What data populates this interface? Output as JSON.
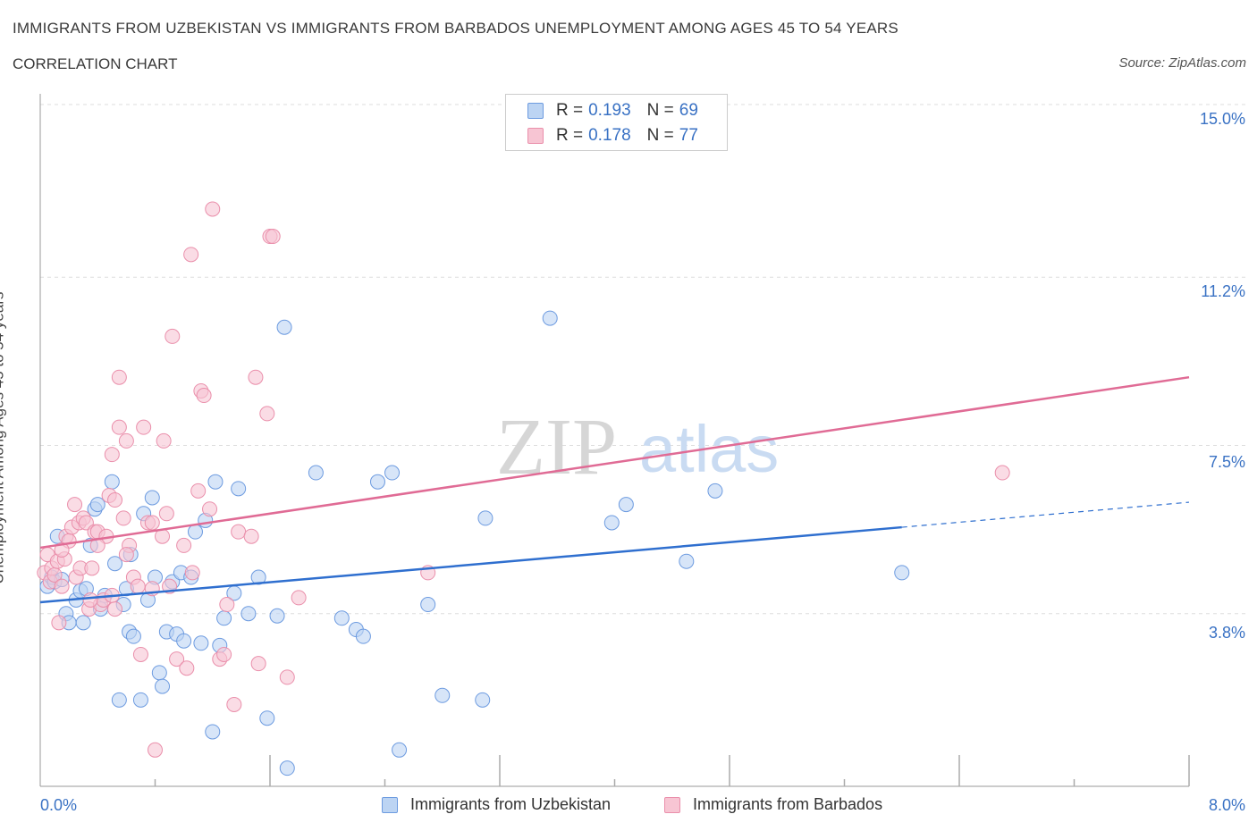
{
  "title": "IMMIGRANTS FROM UZBEKISTAN VS IMMIGRANTS FROM BARBADOS UNEMPLOYMENT AMONG AGES 45 TO 54 YEARS",
  "subtitle": "CORRELATION CHART",
  "source": "Source: ZipAtlas.com",
  "watermark": {
    "zip": "ZIP",
    "atlas": "atlas"
  },
  "legend": {
    "rows": [
      {
        "r_label": "R = ",
        "r_value": "0.193",
        "n_label": "N = ",
        "n_value": "69"
      },
      {
        "r_label": "R = ",
        "r_value": "0.178",
        "n_label": "N = ",
        "n_value": "77"
      }
    ]
  },
  "colors": {
    "uzbekistan_fill": "#bcd4f3",
    "uzbekistan_stroke": "#6d9be0",
    "uzbekistan_line": "#2f6fcf",
    "barbados_fill": "#f7c5d3",
    "barbados_stroke": "#ea8fab",
    "barbados_line": "#e06b95",
    "tick_text": "#3a72c4",
    "grid": "#dddddd"
  },
  "chart_data": {
    "type": "scatter",
    "title": "IMMIGRANTS FROM UZBEKISTAN VS IMMIGRANTS FROM BARBADOS UNEMPLOYMENT AMONG AGES 45 TO 54 YEARS",
    "ylabel": "Unemployment Among Ages 45 to 54 years",
    "xlabel": "",
    "xlim": [
      0,
      8.0
    ],
    "ylim": [
      0,
      15.0
    ],
    "x_tick_labels": [
      "0.0%",
      "8.0%"
    ],
    "y_tick_labels": [
      "15.0%",
      "11.2%",
      "7.5%",
      "3.8%"
    ],
    "y_tick_values": [
      15.0,
      11.2,
      7.5,
      3.8
    ],
    "grid": true,
    "legend_position": "bottom",
    "series": [
      {
        "name": "Immigrants from Uzbekistan",
        "R": 0.193,
        "N": 69,
        "trend": {
          "x0": 0,
          "y0": 4.05,
          "x1": 6.0,
          "y1": 5.7,
          "dashed_to_x": 8.0,
          "dashed_to_y": 6.25
        },
        "points": [
          [
            0.05,
            4.4
          ],
          [
            0.08,
            4.6
          ],
          [
            0.1,
            4.5
          ],
          [
            0.12,
            5.5
          ],
          [
            0.15,
            4.55
          ],
          [
            0.18,
            3.8
          ],
          [
            0.2,
            3.6
          ],
          [
            0.25,
            4.1
          ],
          [
            0.28,
            4.3
          ],
          [
            0.3,
            3.6
          ],
          [
            0.32,
            4.35
          ],
          [
            0.35,
            5.3
          ],
          [
            0.38,
            6.1
          ],
          [
            0.42,
            3.9
          ],
          [
            0.45,
            4.2
          ],
          [
            0.5,
            6.7
          ],
          [
            0.52,
            4.9
          ],
          [
            0.55,
            1.9
          ],
          [
            0.58,
            4.0
          ],
          [
            0.62,
            3.4
          ],
          [
            0.63,
            5.1
          ],
          [
            0.65,
            3.3
          ],
          [
            0.7,
            1.9
          ],
          [
            0.72,
            6.0
          ],
          [
            0.75,
            4.1
          ],
          [
            0.78,
            6.35
          ],
          [
            0.8,
            4.6
          ],
          [
            0.83,
            2.5
          ],
          [
            0.85,
            2.2
          ],
          [
            0.88,
            3.4
          ],
          [
            0.92,
            4.5
          ],
          [
            0.95,
            3.35
          ],
          [
            0.98,
            4.7
          ],
          [
            1.0,
            3.2
          ],
          [
            1.05,
            4.6
          ],
          [
            1.08,
            5.6
          ],
          [
            1.12,
            3.15
          ],
          [
            1.15,
            5.85
          ],
          [
            1.2,
            1.2
          ],
          [
            1.22,
            6.7
          ],
          [
            1.25,
            3.1
          ],
          [
            1.28,
            3.7
          ],
          [
            1.35,
            4.25
          ],
          [
            1.38,
            6.55
          ],
          [
            1.45,
            3.8
          ],
          [
            1.52,
            4.6
          ],
          [
            1.58,
            1.5
          ],
          [
            1.65,
            3.75
          ],
          [
            1.7,
            10.1
          ],
          [
            1.72,
            0.4
          ],
          [
            1.92,
            6.9
          ],
          [
            2.1,
            3.7
          ],
          [
            2.2,
            3.45
          ],
          [
            2.25,
            3.3
          ],
          [
            2.35,
            6.7
          ],
          [
            2.45,
            6.9
          ],
          [
            2.5,
            0.8
          ],
          [
            2.7,
            4.0
          ],
          [
            2.8,
            2.0
          ],
          [
            3.08,
            1.9
          ],
          [
            3.1,
            5.9
          ],
          [
            3.55,
            10.3
          ],
          [
            3.98,
            5.8
          ],
          [
            4.08,
            6.2
          ],
          [
            4.5,
            4.95
          ],
          [
            4.7,
            6.5
          ],
          [
            6.0,
            4.7
          ],
          [
            0.4,
            6.2
          ],
          [
            0.6,
            4.35
          ]
        ]
      },
      {
        "name": "Immigrants from Barbados",
        "R": 0.178,
        "N": 77,
        "trend": {
          "x0": 0,
          "y0": 5.25,
          "x1": 8.0,
          "y1": 9.0
        },
        "points": [
          [
            0.03,
            4.7
          ],
          [
            0.05,
            5.1
          ],
          [
            0.07,
            4.5
          ],
          [
            0.08,
            4.8
          ],
          [
            0.1,
            4.65
          ],
          [
            0.12,
            4.95
          ],
          [
            0.13,
            3.6
          ],
          [
            0.15,
            4.4
          ],
          [
            0.17,
            5.0
          ],
          [
            0.18,
            5.5
          ],
          [
            0.2,
            5.4
          ],
          [
            0.22,
            5.7
          ],
          [
            0.24,
            6.2
          ],
          [
            0.25,
            4.6
          ],
          [
            0.27,
            5.8
          ],
          [
            0.28,
            4.8
          ],
          [
            0.3,
            5.9
          ],
          [
            0.32,
            5.8
          ],
          [
            0.34,
            3.9
          ],
          [
            0.36,
            4.8
          ],
          [
            0.38,
            5.6
          ],
          [
            0.4,
            5.6
          ],
          [
            0.42,
            4.0
          ],
          [
            0.44,
            4.1
          ],
          [
            0.46,
            5.5
          ],
          [
            0.48,
            6.4
          ],
          [
            0.5,
            4.2
          ],
          [
            0.52,
            3.9
          ],
          [
            0.5,
            7.3
          ],
          [
            0.52,
            6.3
          ],
          [
            0.55,
            9.0
          ],
          [
            0.55,
            7.9
          ],
          [
            0.58,
            5.9
          ],
          [
            0.6,
            7.6
          ],
          [
            0.62,
            5.3
          ],
          [
            0.65,
            4.6
          ],
          [
            0.68,
            4.4
          ],
          [
            0.7,
            2.9
          ],
          [
            0.72,
            7.9
          ],
          [
            0.75,
            5.8
          ],
          [
            0.78,
            4.35
          ],
          [
            0.8,
            0.8
          ],
          [
            0.85,
            5.5
          ],
          [
            0.86,
            7.6
          ],
          [
            0.88,
            6.0
          ],
          [
            0.9,
            4.4
          ],
          [
            0.92,
            9.9
          ],
          [
            0.95,
            2.8
          ],
          [
            1.0,
            5.3
          ],
          [
            1.02,
            2.6
          ],
          [
            1.05,
            11.7
          ],
          [
            1.06,
            4.7
          ],
          [
            1.1,
            6.5
          ],
          [
            1.12,
            8.7
          ],
          [
            1.14,
            8.6
          ],
          [
            1.18,
            6.1
          ],
          [
            1.2,
            12.7
          ],
          [
            1.25,
            2.8
          ],
          [
            1.28,
            2.9
          ],
          [
            1.35,
            1.8
          ],
          [
            1.38,
            5.6
          ],
          [
            1.47,
            5.5
          ],
          [
            1.5,
            9.0
          ],
          [
            1.52,
            2.7
          ],
          [
            1.58,
            8.2
          ],
          [
            1.6,
            12.1
          ],
          [
            1.62,
            12.1
          ],
          [
            1.72,
            2.4
          ],
          [
            1.8,
            4.15
          ],
          [
            2.7,
            4.7
          ],
          [
            6.7,
            6.9
          ],
          [
            0.6,
            5.1
          ],
          [
            0.35,
            4.1
          ],
          [
            0.15,
            5.2
          ],
          [
            0.4,
            5.3
          ],
          [
            0.78,
            5.8
          ],
          [
            1.3,
            4.0
          ]
        ]
      }
    ]
  },
  "bottom_legend": {
    "uzbekistan": "Immigrants from Uzbekistan",
    "barbados": "Immigrants from Barbados"
  }
}
